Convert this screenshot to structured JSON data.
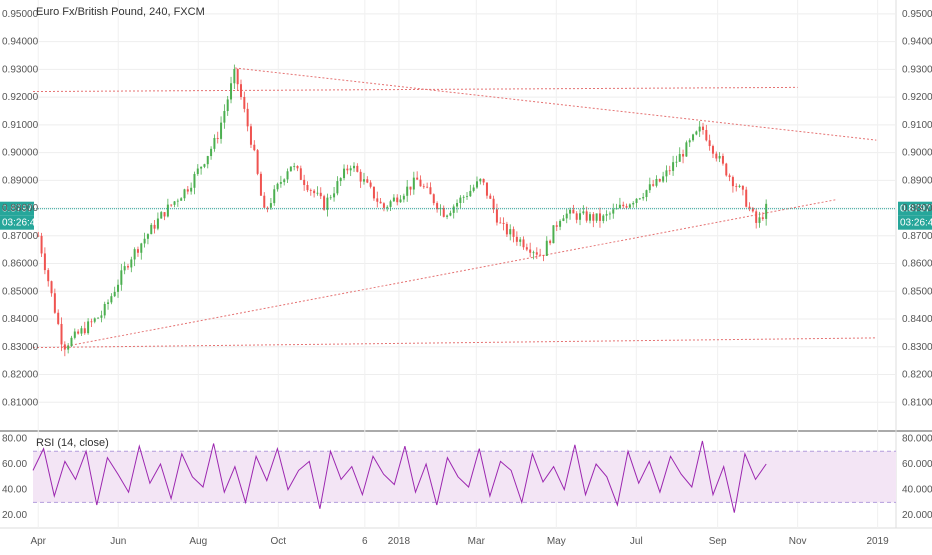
{
  "chart_data": [
    {
      "type": "candlestick",
      "title": "Euro Fx/British Pound, 240, FXCM",
      "ylim": [
        0.8,
        0.955
      ],
      "y_ticks": [
        "0.95000",
        "0.94000",
        "0.93000",
        "0.92000",
        "0.91000",
        "0.90000",
        "0.89000",
        "0.88000",
        "0.87000",
        "0.86000",
        "0.85000",
        "0.84000",
        "0.83000",
        "0.82000",
        "0.81000"
      ],
      "x_ticks": [
        "Apr",
        "Jun",
        "Aug",
        "Oct",
        "6",
        "2018",
        "Mar",
        "May",
        "Jul",
        "Sep",
        "Nov",
        "2019"
      ],
      "current_price": {
        "value": 0.87977,
        "label": "0.87977",
        "timer": "03:26:48"
      },
      "key_points": [
        {
          "date": "2017-04-01",
          "close": 0.87
        },
        {
          "date": "2017-04-20",
          "close": 0.83
        },
        {
          "date": "2017-05-20",
          "close": 0.842
        },
        {
          "date": "2017-06-10",
          "close": 0.862
        },
        {
          "date": "2017-07-05",
          "close": 0.878
        },
        {
          "date": "2017-07-25",
          "close": 0.888
        },
        {
          "date": "2017-08-15",
          "close": 0.905
        },
        {
          "date": "2017-08-29",
          "close": 0.929
        },
        {
          "date": "2017-09-12",
          "close": 0.901
        },
        {
          "date": "2017-09-20",
          "close": 0.878
        },
        {
          "date": "2017-10-10",
          "close": 0.896
        },
        {
          "date": "2017-11-05",
          "close": 0.881
        },
        {
          "date": "2017-11-25",
          "close": 0.896
        },
        {
          "date": "2017-12-20",
          "close": 0.88
        },
        {
          "date": "2018-01-15",
          "close": 0.89
        },
        {
          "date": "2018-02-05",
          "close": 0.878
        },
        {
          "date": "2018-03-05",
          "close": 0.89
        },
        {
          "date": "2018-03-20",
          "close": 0.873
        },
        {
          "date": "2018-04-20",
          "close": 0.863
        },
        {
          "date": "2018-05-05",
          "close": 0.878
        },
        {
          "date": "2018-06-05",
          "close": 0.876
        },
        {
          "date": "2018-06-25",
          "close": 0.882
        },
        {
          "date": "2018-07-20",
          "close": 0.89
        },
        {
          "date": "2018-08-20",
          "close": 0.909
        },
        {
          "date": "2018-09-05",
          "close": 0.895
        },
        {
          "date": "2018-09-20",
          "close": 0.885
        },
        {
          "date": "2018-10-01",
          "close": 0.874
        },
        {
          "date": "2018-10-08",
          "close": 0.8798
        }
      ],
      "trend_lines": [
        {
          "from": {
            "date": "2017-08-29",
            "value": 0.9305
          },
          "to": {
            "date": "2018-12-31",
            "value": 0.9045
          },
          "color": "#e57373"
        },
        {
          "from": {
            "date": "2017-03-28",
            "value": 0.922
          },
          "to": {
            "date": "2018-11-01",
            "value": 0.9235
          },
          "color": "#e57373"
        },
        {
          "from": {
            "date": "2017-04-20",
            "value": 0.83
          },
          "to": {
            "date": "2018-11-30",
            "value": 0.883
          },
          "color": "#e57373"
        },
        {
          "from": {
            "date": "2017-03-28",
            "value": 0.8297
          },
          "to": {
            "date": "2018-12-31",
            "value": 0.8332
          },
          "color": "#e57373"
        }
      ]
    },
    {
      "type": "line",
      "title": "RSI (14, close)",
      "ylim": [
        10,
        85
      ],
      "y_ticks": [
        "80.0000",
        "60.0000",
        "40.0000",
        "20.0000"
      ],
      "band": [
        30,
        70
      ],
      "series": [
        {
          "values": [
            55,
            72,
            35,
            62,
            48,
            70,
            28,
            65,
            52,
            38,
            74,
            45,
            60,
            33,
            68,
            50,
            42,
            76,
            38,
            58,
            30,
            66,
            47,
            72,
            40,
            55,
            62,
            25,
            70,
            48,
            58,
            36,
            66,
            52,
            44,
            74,
            38,
            60,
            28,
            65,
            50,
            42,
            72,
            35,
            62,
            55,
            30,
            68,
            46,
            58,
            40,
            75,
            36,
            60,
            50,
            28,
            70,
            45,
            62,
            38,
            66,
            52,
            42,
            78,
            36,
            58,
            22,
            68,
            48,
            60
          ]
        }
      ]
    }
  ],
  "colors": {
    "candle_up": "#4caf50",
    "candle_down": "#ef5350",
    "price_line": "#26a69a",
    "rsi_line": "#9c27b0",
    "rsi_band": "#f3e5f5",
    "trend_line": "#e57373"
  }
}
